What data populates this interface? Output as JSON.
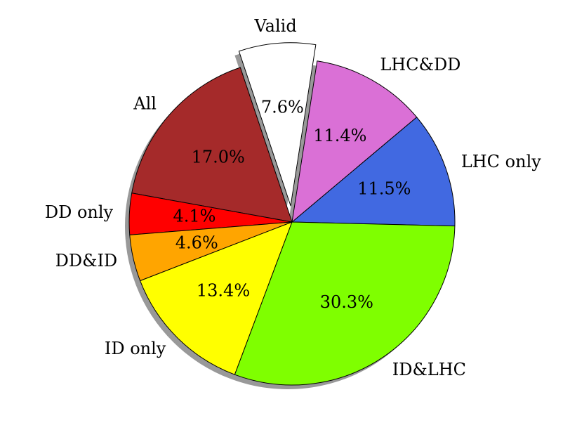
{
  "chart_data": {
    "type": "pie",
    "categories": [
      "LHC only",
      "LHC&DD",
      "Valid",
      "All",
      "DD only",
      "DD&ID",
      "ID only",
      "ID&LHC"
    ],
    "values": [
      11.5,
      11.4,
      7.6,
      17.0,
      4.1,
      4.6,
      13.4,
      30.3
    ],
    "value_labels": [
      "11.5%",
      "11.4%",
      "7.6%",
      "17.0%",
      "4.1%",
      "4.6%",
      "13.4%",
      "30.3%"
    ],
    "colors": [
      "#4169e1",
      "#da70d6",
      "#ffffff",
      "#a52a2a",
      "#ff0000",
      "#ffa500",
      "#ffff00",
      "#7fff00"
    ],
    "explode": [
      0,
      0,
      0.1,
      0,
      0,
      0,
      0,
      0
    ],
    "shadow": true
  }
}
